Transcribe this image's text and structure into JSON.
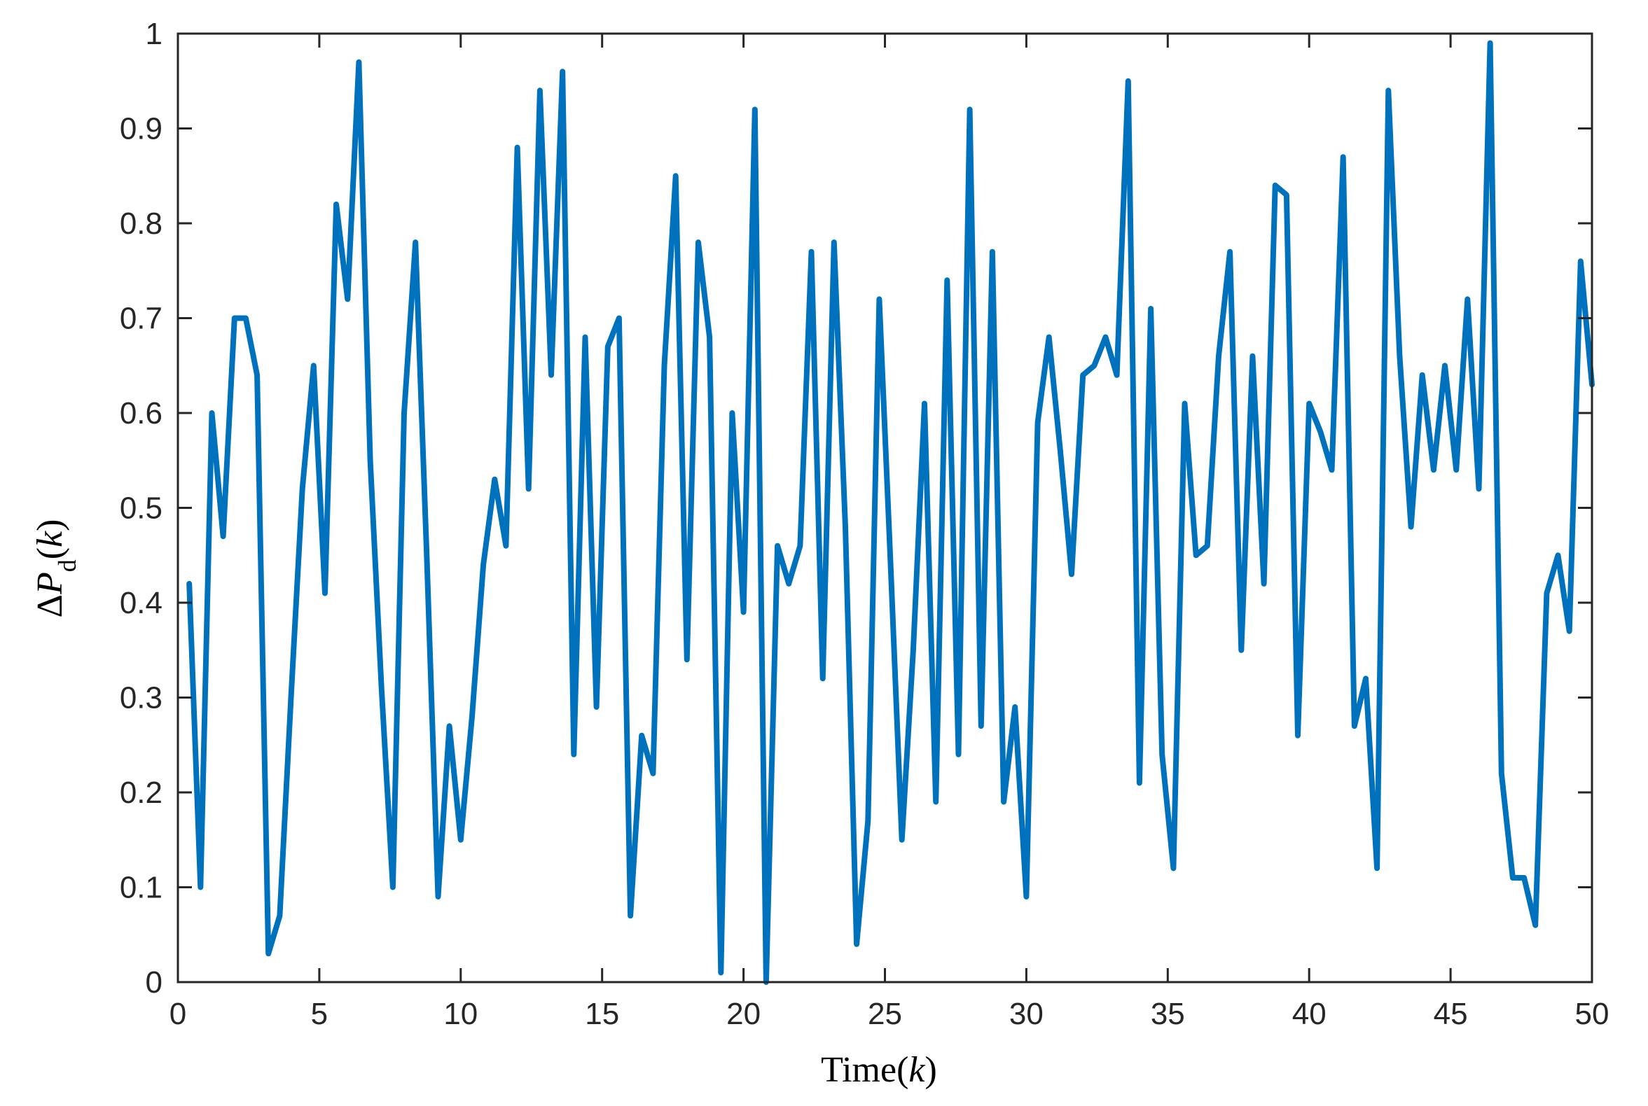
{
  "chart_data": {
    "type": "line",
    "title": "",
    "xlabel": "Time(k)",
    "ylabel": "ΔPd(k)",
    "xlim": [
      0,
      50
    ],
    "ylim": [
      0,
      1
    ],
    "xticks": [
      0,
      5,
      10,
      15,
      20,
      25,
      30,
      35,
      40,
      45,
      50
    ],
    "yticks": [
      0,
      0.1,
      0.2,
      0.3,
      0.4,
      0.5,
      0.6,
      0.7,
      0.8,
      0.9,
      1
    ],
    "xtick_labels": [
      "0",
      "5",
      "10",
      "15",
      "20",
      "25",
      "30",
      "35",
      "40",
      "45",
      "50"
    ],
    "ytick_labels": [
      "0",
      "0.1",
      "0.2",
      "0.3",
      "0.4",
      "0.5",
      "0.6",
      "0.7",
      "0.8",
      "0.9",
      "1"
    ],
    "grid": false,
    "line_color": "#0072BD",
    "series": [
      {
        "x": [
          0.4,
          0.8,
          1.2,
          1.6,
          2.0,
          2.4,
          2.8,
          3.2,
          3.6,
          4.0,
          4.4,
          4.8,
          5.2,
          5.6,
          6.0,
          6.4,
          6.8,
          7.2,
          7.6,
          8.0,
          8.4,
          8.8,
          9.2,
          9.6,
          10.0,
          10.4,
          10.8,
          11.2,
          11.6,
          12.0,
          12.4,
          12.8,
          13.2,
          13.6,
          14.0,
          14.4,
          14.8,
          15.2,
          15.6,
          16.0,
          16.4,
          16.8,
          17.2,
          17.6,
          18.0,
          18.4,
          18.8,
          19.2,
          19.6,
          20.0,
          20.4,
          20.8,
          21.2,
          21.6,
          22.0,
          22.4,
          22.8,
          23.2,
          23.6,
          24.0,
          24.4,
          24.8,
          25.2,
          25.6,
          26.0,
          26.4,
          26.8,
          27.2,
          27.6,
          28.0,
          28.4,
          28.8,
          29.2,
          29.6,
          30.0,
          30.4,
          30.8,
          31.2,
          31.6,
          32.0,
          32.4,
          32.8,
          33.2,
          33.6,
          34.0,
          34.4,
          34.8,
          35.2,
          35.6,
          36.0,
          36.4,
          36.8,
          37.2,
          37.6,
          38.0,
          38.4,
          38.8,
          39.2,
          39.6,
          40.0,
          40.4,
          40.8,
          41.2,
          41.6,
          42.0,
          42.4,
          42.8,
          43.2,
          43.6,
          44.0,
          44.4,
          44.8,
          45.2,
          45.6,
          46.0,
          46.4,
          46.8,
          47.2,
          47.6,
          48.0,
          48.4,
          48.8,
          49.2,
          49.6,
          50.0
        ],
        "y": [
          0.42,
          0.1,
          0.6,
          0.47,
          0.7,
          0.7,
          0.64,
          0.03,
          0.07,
          0.3,
          0.52,
          0.65,
          0.41,
          0.82,
          0.72,
          0.97,
          0.55,
          0.31,
          0.1,
          0.6,
          0.78,
          0.45,
          0.09,
          0.27,
          0.15,
          0.28,
          0.44,
          0.53,
          0.46,
          0.88,
          0.52,
          0.94,
          0.64,
          0.96,
          0.24,
          0.68,
          0.29,
          0.67,
          0.7,
          0.07,
          0.26,
          0.22,
          0.65,
          0.85,
          0.34,
          0.78,
          0.68,
          0.01,
          0.6,
          0.39,
          0.92,
          0.0,
          0.46,
          0.42,
          0.46,
          0.77,
          0.32,
          0.78,
          0.48,
          0.04,
          0.17,
          0.72,
          0.44,
          0.15,
          0.35,
          0.61,
          0.19,
          0.74,
          0.24,
          0.92,
          0.27,
          0.77,
          0.19,
          0.29,
          0.09,
          0.59,
          0.68,
          0.56,
          0.43,
          0.64,
          0.65,
          0.68,
          0.64,
          0.95,
          0.21,
          0.71,
          0.24,
          0.12,
          0.61,
          0.45,
          0.46,
          0.66,
          0.77,
          0.35,
          0.66,
          0.42,
          0.84,
          0.83,
          0.26,
          0.61,
          0.58,
          0.54,
          0.87,
          0.27,
          0.32,
          0.12,
          0.94,
          0.66,
          0.48,
          0.64,
          0.54,
          0.65,
          0.54,
          0.72,
          0.52,
          0.99,
          0.22,
          0.11,
          0.11,
          0.06,
          0.41,
          0.45,
          0.37,
          0.76,
          0.63
        ]
      }
    ]
  }
}
